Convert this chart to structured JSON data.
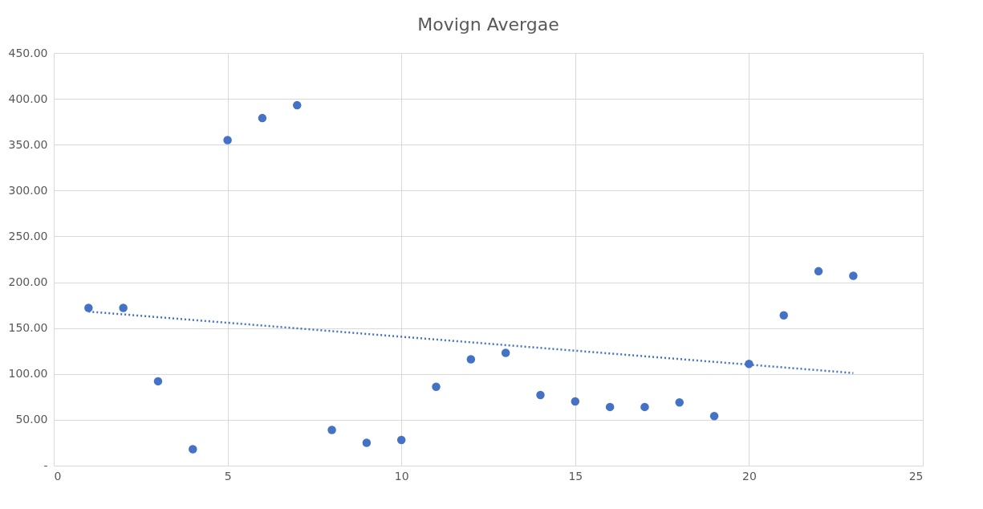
{
  "chart_data": {
    "type": "scatter",
    "title": "Movign Avergae",
    "x": [
      1,
      2,
      3,
      4,
      5,
      6,
      7,
      8,
      9,
      10,
      11,
      12,
      13,
      14,
      15,
      16,
      17,
      18,
      19,
      20,
      21,
      22,
      23
    ],
    "series": [
      {
        "color": "#4472c4",
        "marker": "circle",
        "values": [
          172,
          172,
          92,
          18,
          355,
          379,
          393,
          39,
          25,
          28,
          86,
          116,
          123,
          77,
          70,
          64,
          64,
          69,
          54,
          111,
          164,
          212,
          207
        ]
      },
      {
        "type": "line",
        "color": "#4472c4",
        "line_style": "dotted",
        "marker": "none",
        "x": [
          1,
          23
        ],
        "values": [
          168,
          101
        ]
      }
    ],
    "xlim": [
      0,
      25
    ],
    "xticks": [
      0,
      5,
      10,
      15,
      20,
      25
    ],
    "ylim": [
      0,
      450
    ],
    "yticks": [
      {
        "value": 0,
        "label": "-"
      },
      {
        "value": 50,
        "label": "50.00"
      },
      {
        "value": 100,
        "label": "100.00"
      },
      {
        "value": 150,
        "label": "150.00"
      },
      {
        "value": 200,
        "label": "200.00"
      },
      {
        "value": 250,
        "label": "250.00"
      },
      {
        "value": 300,
        "label": "300.00"
      },
      {
        "value": 350,
        "label": "350.00"
      },
      {
        "value": 400,
        "label": "400.00"
      },
      {
        "value": 450,
        "label": "450.00"
      }
    ],
    "grid": true
  }
}
